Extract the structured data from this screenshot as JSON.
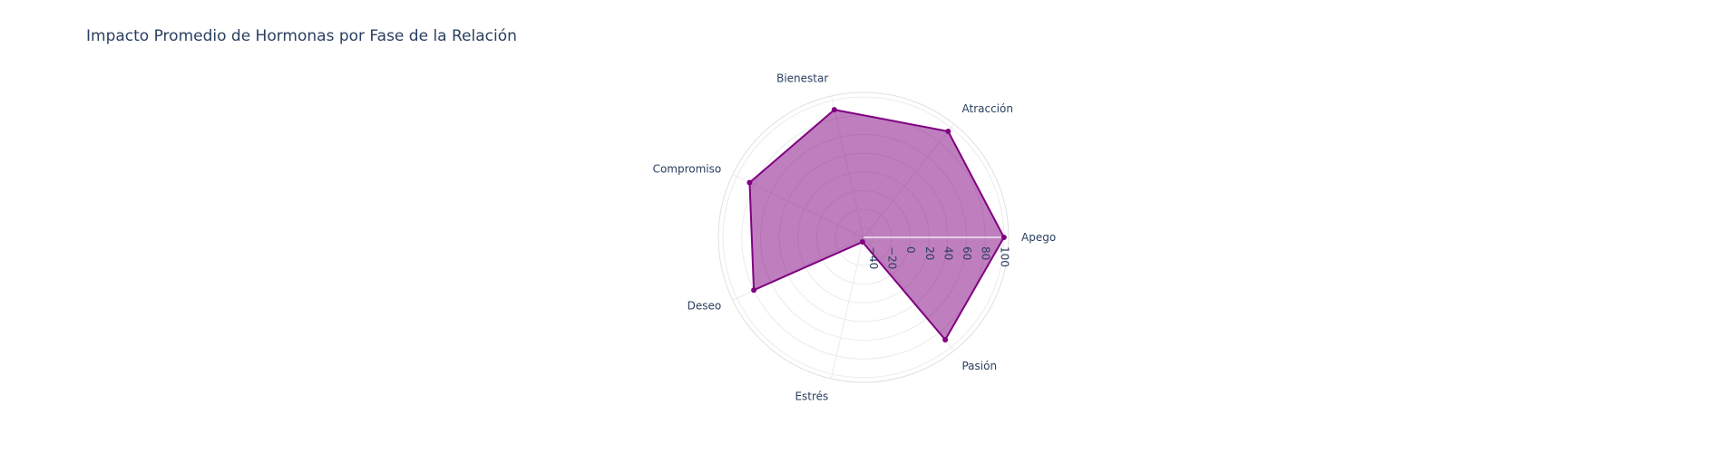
{
  "chart_data": {
    "type": "radar",
    "title": "Impacto Promedio de Hormonas por Fase de la Relación",
    "categories": [
      "Apego",
      "Atracción",
      "Bienestar",
      "Compromiso",
      "Deseo",
      "Estrés",
      "Pasión"
    ],
    "series": [
      {
        "values": [
          100,
          95,
          90,
          85,
          80,
          -45,
          90
        ],
        "line_color": "#800080",
        "fill_color": "rgba(128,0,128,0.5)"
      }
    ],
    "radial_range": [
      -50,
      105
    ],
    "radial_ticks": [
      -40,
      -20,
      0,
      20,
      40,
      60,
      80,
      100
    ],
    "grid": true,
    "legend": "none"
  }
}
